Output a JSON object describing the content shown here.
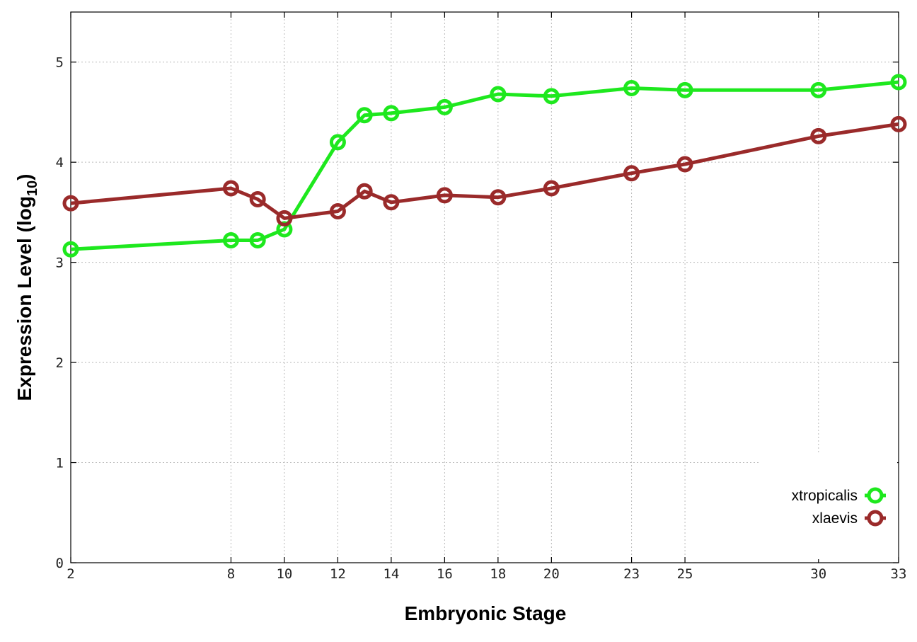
{
  "chart_data": {
    "type": "line",
    "xlabel": "Embryonic Stage",
    "ylabel_main": "Expression Level (log",
    "ylabel_sub": "10",
    "ylabel_close": ")",
    "xlim": [
      2,
      33
    ],
    "ylim": [
      0,
      5.5
    ],
    "x_ticks": [
      2,
      8,
      10,
      12,
      14,
      16,
      18,
      20,
      23,
      25,
      30,
      33
    ],
    "y_ticks": [
      0,
      1,
      2,
      3,
      4,
      5
    ],
    "grid": true,
    "legend_position": "bottom-right",
    "series": [
      {
        "name": "xtropicalis",
        "color": "#1ee81e",
        "x": [
          2,
          8,
          9,
          10,
          12,
          13,
          14,
          16,
          18,
          20,
          23,
          25,
          30,
          33
        ],
        "y": [
          3.13,
          3.22,
          3.22,
          3.33,
          4.2,
          4.47,
          4.49,
          4.55,
          4.68,
          4.66,
          4.74,
          4.72,
          4.72,
          4.8
        ]
      },
      {
        "name": "xlaevis",
        "color": "#9a2a2a",
        "x": [
          2,
          8,
          9,
          10,
          12,
          13,
          14,
          16,
          18,
          20,
          23,
          25,
          30,
          33
        ],
        "y": [
          3.59,
          3.74,
          3.63,
          3.44,
          3.51,
          3.71,
          3.6,
          3.67,
          3.65,
          3.74,
          3.89,
          3.98,
          4.26,
          4.38
        ]
      }
    ]
  }
}
